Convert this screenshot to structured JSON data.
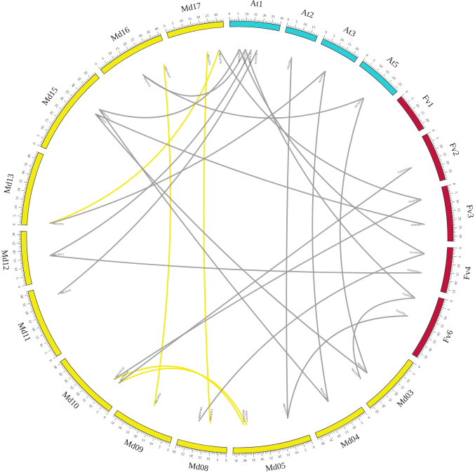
{
  "colors": {
    "apple": "#f2ea14",
    "arabidopsis": "#2ccfd8",
    "strawberry": "#c0143c",
    "link_gray": "#9a9a9a",
    "link_yellow": "#f2ea14",
    "outline": "#2a2a2a"
  },
  "chromosomes": [
    {
      "name": "At1",
      "species": "arabidopsis",
      "length": 30
    },
    {
      "name": "At2",
      "species": "arabidopsis",
      "length": 19
    },
    {
      "name": "At3",
      "species": "arabidopsis",
      "length": 23
    },
    {
      "name": "At5",
      "species": "arabidopsis",
      "length": 27
    },
    {
      "name": "Fv1",
      "species": "strawberry",
      "length": 23
    },
    {
      "name": "Fv2",
      "species": "strawberry",
      "length": 29
    },
    {
      "name": "Fv3",
      "species": "strawberry",
      "length": 33
    },
    {
      "name": "Fv4",
      "species": "strawberry",
      "length": 27
    },
    {
      "name": "Fv6",
      "species": "strawberry",
      "length": 38
    },
    {
      "name": "Md03",
      "species": "apple",
      "length": 37
    },
    {
      "name": "Md04",
      "species": "apple",
      "length": 32
    },
    {
      "name": "Md05",
      "species": "apple",
      "length": 47
    },
    {
      "name": "Md08",
      "species": "apple",
      "length": 30
    },
    {
      "name": "Md09",
      "species": "apple",
      "length": 37
    },
    {
      "name": "Md10",
      "species": "apple",
      "length": 41
    },
    {
      "name": "Md11",
      "species": "apple",
      "length": 42
    },
    {
      "name": "Md12",
      "species": "apple",
      "length": 32
    },
    {
      "name": "Md13",
      "species": "apple",
      "length": 44
    },
    {
      "name": "Md15",
      "species": "apple",
      "length": 54
    },
    {
      "name": "Md16",
      "species": "apple",
      "length": 41
    },
    {
      "name": "Md17",
      "species": "apple",
      "length": 34
    }
  ],
  "genes": [
    {
      "id": "g1",
      "label": "MdGSTF5",
      "chr": "Md17",
      "pos": 22
    },
    {
      "id": "g2",
      "label": "MdGSTF8",
      "chr": "Md17",
      "pos": 30
    },
    {
      "id": "g3",
      "label": "MdGSTU17",
      "chr": "Md16",
      "pos": 36
    },
    {
      "id": "g4",
      "label": "MdGSTU3",
      "chr": "Md16",
      "pos": 20
    },
    {
      "id": "g5",
      "label": "MdGSTL4",
      "chr": "Md15",
      "pos": 40
    },
    {
      "id": "g6",
      "label": "MdGSTU3",
      "chr": "Md15",
      "pos": 36
    },
    {
      "id": "g7",
      "label": "MdGSTU5",
      "chr": "Md13",
      "pos": 2
    },
    {
      "id": "g8",
      "label": "MdGSTL2",
      "chr": "Md12",
      "pos": 16
    },
    {
      "id": "g9",
      "label": "MdGSTF4",
      "chr": "Md11",
      "pos": 35
    },
    {
      "id": "g10",
      "label": "MdGSTU24",
      "chr": "Md10",
      "pos": 6
    },
    {
      "id": "g11",
      "label": "MdGSTU26",
      "chr": "Md10",
      "pos": 10
    },
    {
      "id": "g12",
      "label": "MdGSTU6",
      "chr": "Md09",
      "pos": 18
    },
    {
      "id": "g13",
      "label": "MdGSTU4",
      "chr": "Md08",
      "pos": 12
    },
    {
      "id": "g14",
      "label": "MdDHAR2",
      "chr": "Md08",
      "pos": 20
    },
    {
      "id": "g15",
      "label": "MdGSTU7",
      "chr": "Md05",
      "pos": 38
    },
    {
      "id": "g16",
      "label": "MdGSTU11",
      "chr": "Md05",
      "pos": 40
    },
    {
      "id": "g17",
      "label": "MdGSTU27",
      "chr": "Md05",
      "pos": 10
    },
    {
      "id": "g18",
      "label": "MdGSTU26",
      "chr": "Md04",
      "pos": 16
    },
    {
      "id": "g19",
      "label": "MdGSTF7",
      "chr": "Md03",
      "pos": 30
    },
    {
      "id": "g20",
      "label": "MdGSTT1",
      "chr": "Md03",
      "pos": 24
    },
    {
      "id": "g21",
      "label": "AtGSTF9",
      "chr": "At1",
      "pos": 6
    },
    {
      "id": "g22",
      "label": "AtGSTU17",
      "chr": "At1",
      "pos": 10
    },
    {
      "id": "g23",
      "label": "AtGSTU19",
      "chr": "At1",
      "pos": 14
    },
    {
      "id": "g24",
      "label": "AtGSTU20",
      "chr": "At1",
      "pos": 18
    },
    {
      "id": "g25",
      "label": "AtGSTF8",
      "chr": "At2",
      "pos": 8
    },
    {
      "id": "g26",
      "label": "AtGSTU3",
      "chr": "At3",
      "pos": 10
    },
    {
      "id": "g27",
      "label": "AtGSTT1",
      "chr": "At5",
      "pos": 15
    },
    {
      "id": "g28",
      "label": "FvGSTU12",
      "chr": "Fv2",
      "pos": 15
    },
    {
      "id": "g29",
      "label": "FvGSTF7",
      "chr": "Fv3",
      "pos": 5
    },
    {
      "id": "g30",
      "label": "FvDHAR2",
      "chr": "Fv3",
      "pos": 22
    },
    {
      "id": "g31",
      "label": "FvGSTU10",
      "chr": "Fv4",
      "pos": 5
    },
    {
      "id": "g32",
      "label": "FvGSTU13",
      "chr": "Fv4",
      "pos": 18
    },
    {
      "id": "g33",
      "label": "FvGSTU8",
      "chr": "Fv6",
      "pos": 5
    },
    {
      "id": "g34",
      "label": "FvGSTF6",
      "chr": "Fv6",
      "pos": 18
    }
  ],
  "links": [
    {
      "a": "g1",
      "b": "g13",
      "color": "link_yellow"
    },
    {
      "a": "g3",
      "b": "g12",
      "color": "link_yellow"
    },
    {
      "a": "g2",
      "b": "g7",
      "color": "link_yellow"
    },
    {
      "a": "g10",
      "b": "g15",
      "color": "link_yellow"
    },
    {
      "a": "g11",
      "b": "g16",
      "color": "link_yellow"
    },
    {
      "a": "g21",
      "b": "g5",
      "color": "link_gray"
    },
    {
      "a": "g22",
      "b": "g4",
      "color": "link_gray"
    },
    {
      "a": "g23",
      "b": "g8",
      "color": "link_gray"
    },
    {
      "a": "g24",
      "b": "g9",
      "color": "link_gray"
    },
    {
      "a": "g25",
      "b": "g17",
      "color": "link_gray"
    },
    {
      "a": "g26",
      "b": "g18",
      "color": "link_gray"
    },
    {
      "a": "g27",
      "b": "g20",
      "color": "link_gray"
    },
    {
      "a": "g28",
      "b": "g10",
      "color": "link_gray"
    },
    {
      "a": "g29",
      "b": "g11",
      "color": "link_gray"
    },
    {
      "a": "g30",
      "b": "g6",
      "color": "link_gray"
    },
    {
      "a": "g31",
      "b": "g14",
      "color": "link_gray"
    },
    {
      "a": "g32",
      "b": "g8",
      "color": "link_gray"
    },
    {
      "a": "g33",
      "b": "g19",
      "color": "link_gray"
    },
    {
      "a": "g34",
      "b": "g17",
      "color": "link_gray"
    },
    {
      "a": "g6",
      "b": "g20",
      "color": "link_gray"
    },
    {
      "a": "g5",
      "b": "g18",
      "color": "link_gray"
    },
    {
      "a": "g21",
      "b": "g31",
      "color": "link_gray"
    },
    {
      "a": "g22",
      "b": "g33",
      "color": "link_gray"
    },
    {
      "a": "g2",
      "b": "g29",
      "color": "link_gray"
    },
    {
      "a": "g7",
      "b": "g26",
      "color": "link_gray"
    },
    {
      "a": "g4",
      "b": "g27",
      "color": "link_gray"
    }
  ]
}
